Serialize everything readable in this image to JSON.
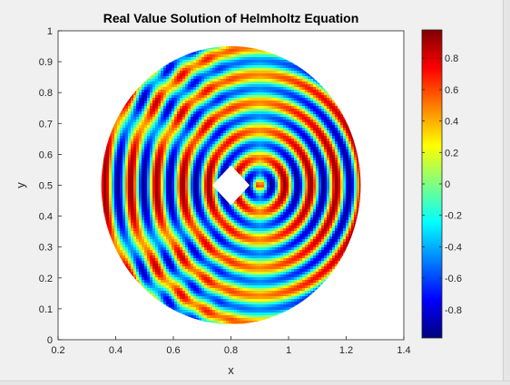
{
  "chart_data": {
    "type": "heatmap",
    "title": "Real Value Solution of Helmholtz Equation",
    "xlabel": "x",
    "ylabel": "y",
    "xlim": [
      0.2,
      1.4
    ],
    "ylim": [
      0,
      1
    ],
    "x_ticks": [
      0.2,
      0.4,
      0.6,
      0.8,
      1,
      1.2,
      1.4
    ],
    "y_ticks": [
      0,
      0.1,
      0.2,
      0.3,
      0.4,
      0.5,
      0.6,
      0.7,
      0.8,
      0.9,
      1
    ],
    "x_tick_labels": [
      "0.2",
      "0.4",
      "0.6",
      "0.8",
      "1",
      "1.2",
      "1.4"
    ],
    "y_tick_labels": [
      "0",
      "0.1",
      "0.2",
      "0.3",
      "0.4",
      "0.5",
      "0.6",
      "0.7",
      "0.8",
      "0.9",
      "1"
    ],
    "domain": {
      "shape": "disk with square hole",
      "center": [
        0.8,
        0.5
      ],
      "outer_radius": 0.45,
      "hole_center": [
        0.8,
        0.5
      ],
      "hole_half_diagonal": 0.065
    },
    "colorbar": {
      "colormap": "jet",
      "limits": [
        -0.98,
        0.98
      ],
      "ticks": [
        -0.8,
        -0.6,
        -0.4,
        -0.2,
        0,
        0.2,
        0.4,
        0.6,
        0.8
      ],
      "tick_labels": [
        "-0.8",
        "-0.6",
        "-0.4",
        "-0.2",
        "0",
        "0.2",
        "0.4",
        "0.6",
        "0.8"
      ]
    },
    "grid": false,
    "legend": "none"
  }
}
